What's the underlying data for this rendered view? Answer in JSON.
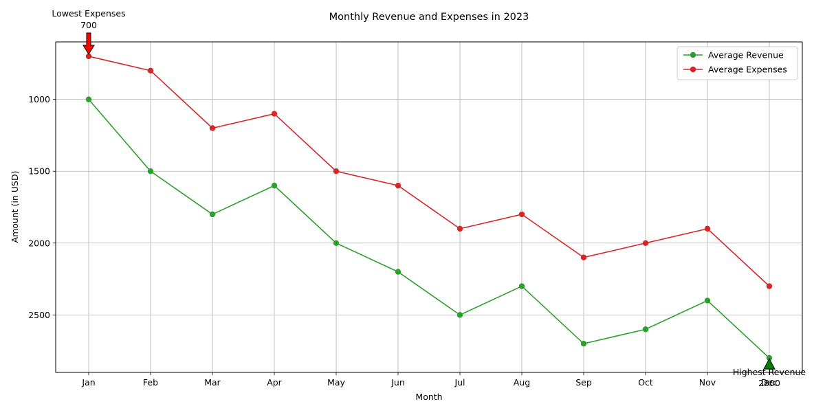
{
  "chart_data": {
    "type": "line",
    "title": "Monthly Revenue and Expenses in 2023",
    "xlabel": "Month",
    "ylabel": "Amount (in USD)",
    "categories": [
      "Jan",
      "Feb",
      "Mar",
      "Apr",
      "May",
      "Jun",
      "Jul",
      "Aug",
      "Sep",
      "Oct",
      "Nov",
      "Dec"
    ],
    "y_axis_inverted": true,
    "ylim": [
      600,
      2900
    ],
    "yticks": [
      1000,
      1500,
      2000,
      2500
    ],
    "grid": true,
    "legend_position": "top-right",
    "series": [
      {
        "name": "Average Revenue",
        "color": "#2ca02c",
        "values": [
          1000,
          1500,
          1800,
          1600,
          2000,
          2200,
          2500,
          2300,
          2700,
          2600,
          2400,
          2800
        ]
      },
      {
        "name": "Average Expenses",
        "color": "#d62728",
        "values": [
          700,
          800,
          1200,
          1100,
          1500,
          1600,
          1900,
          1800,
          2100,
          2000,
          1900,
          2300
        ]
      }
    ],
    "annotations": [
      {
        "label": "Lowest Expenses",
        "value_text": "700",
        "category": "Jan",
        "value": 700,
        "arrow_color": "#ff0000",
        "placement": "above"
      },
      {
        "label": "Highest Revenue",
        "value_text": "2800",
        "category": "Dec",
        "value": 2800,
        "arrow_color": "#008000",
        "placement": "below"
      }
    ]
  }
}
